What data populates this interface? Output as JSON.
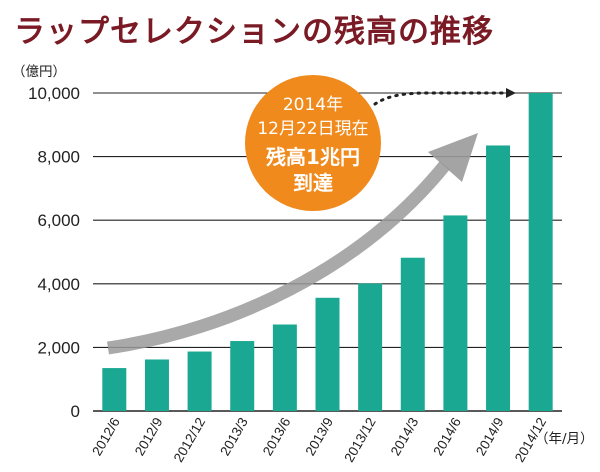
{
  "chart_data": {
    "type": "bar",
    "title": "ラップセレクションの残高の推移",
    "ylabel": "（億円）",
    "xlabel": "（年/月）",
    "categories": [
      "2012/6",
      "2012/9",
      "2012/12",
      "2013/3",
      "2013/6",
      "2013/9",
      "2013/12",
      "2014/3",
      "2014/6",
      "2014/9",
      "2014/12"
    ],
    "values": [
      1350,
      1620,
      1870,
      2200,
      2720,
      3560,
      4010,
      4820,
      6150,
      8350,
      10000
    ],
    "ylim": [
      0,
      10000
    ],
    "yticks": [
      0,
      2000,
      4000,
      6000,
      8000,
      10000
    ],
    "ytick_labels": [
      "0",
      "2,000",
      "4,000",
      "6,000",
      "8,000",
      "10,000"
    ],
    "grid": true,
    "bar_color": "#1aa892",
    "annotation": {
      "line1": "2014年",
      "line2": "12月22日現在",
      "line3": "残高1兆円",
      "line4": "到達",
      "color": "#f08a1c"
    }
  }
}
